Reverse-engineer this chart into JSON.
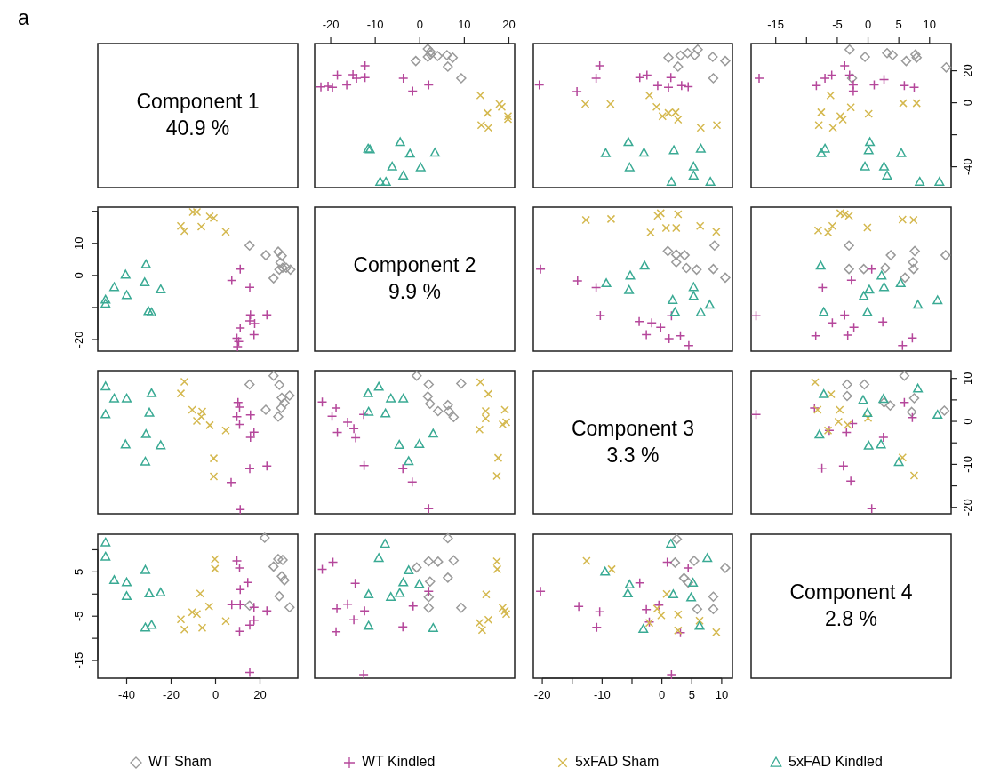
{
  "chart_data": [
    {
      "type": "other",
      "title": "Component 1",
      "subtitle": "40.9 %",
      "annotations": [
        "a"
      ]
    },
    {
      "type": "scatter",
      "xlim": [
        -23.6,
        21.3
      ],
      "ylim": [
        -53,
        37
      ],
      "xticks": [
        -20,
        -10,
        0,
        10,
        20
      ],
      "tick_labels": "x",
      "series": [
        {
          "color": "#9a9a9a",
          "marker": "diamond",
          "x": [
            9.3,
            6.3,
            -0.9,
            7.4,
            6.1,
            4,
            2.4,
            2.4,
            1.8,
            1.8
          ],
          "values": [
            15.3,
            22.6,
            26.1,
            28.2,
            29.8,
            29.2,
            30.2,
            31.8,
            33.7,
            28.7
          ]
        },
        {
          "color": "#b5479b",
          "marker": "plus",
          "x": [
            2,
            -1.6,
            -3.7,
            -12.3,
            -12.3,
            -14.2,
            -15,
            -18.5,
            -16.4,
            -19.6,
            -20.6,
            -22.2
          ],
          "values": [
            11.1,
            7.3,
            15.4,
            15.7,
            23.1,
            15.4,
            17.6,
            17.3,
            11.1,
            9.6,
            10.4,
            9.9
          ]
        },
        {
          "color": "#d4b84e",
          "marker": "cross",
          "x": [
            19.8,
            19.8,
            15.4,
            13.8,
            15.2,
            18.4,
            17.9,
            13.6
          ],
          "values": [
            -10.2,
            -8.4,
            -15.6,
            -14,
            -6.4,
            -2.6,
            -0.8,
            4.6
          ]
        },
        {
          "color": "#3aaa94",
          "marker": "triangle",
          "x": [
            3.4,
            0.2,
            -3.7,
            -2.2,
            -4.4,
            -6.2,
            -7.6,
            -8.9,
            -11.2,
            -11.6
          ],
          "values": [
            -31.3,
            -40.5,
            -45.6,
            -31.9,
            -24.7,
            -40,
            -49.5,
            -49.5,
            -29.3,
            -28.8
          ]
        }
      ]
    },
    {
      "type": "scatter",
      "xlim": [
        -21.5,
        11.8
      ],
      "ylim": [
        -53,
        37
      ],
      "tick_labels": false,
      "series": [
        {
          "color": "#9a9a9a",
          "marker": "diamond",
          "x": [
            8.6,
            10.6,
            8.5,
            5.5,
            6,
            4.3,
            3.1,
            1.1,
            2.7
          ],
          "values": [
            15.3,
            26.1,
            28.7,
            29.8,
            33.3,
            31,
            29.5,
            28.2,
            22.6
          ]
        },
        {
          "color": "#b5479b",
          "marker": "plus",
          "x": [
            4.4,
            3.3,
            1.1,
            -0.7,
            1.5,
            -2.5,
            -3.7,
            -11,
            -10.4,
            -14.2,
            -20.5
          ],
          "values": [
            10.1,
            10.8,
            9.6,
            10.8,
            15.7,
            17.3,
            15.7,
            15.4,
            23.1,
            7,
            11.1
          ]
        },
        {
          "color": "#d4b84e",
          "marker": "cross",
          "x": [
            9.2,
            6.5,
            2.7,
            2.3,
            1.1,
            0.1,
            -0.9,
            -2.1,
            -8.6,
            -12.8
          ],
          "values": [
            -14,
            -15.6,
            -10.5,
            -6,
            -6.4,
            -8.4,
            -2.6,
            4.6,
            -0.8,
            -0.8
          ]
        },
        {
          "color": "#3aaa94",
          "marker": "triangle",
          "x": [
            8.1,
            5.3,
            5.3,
            6.5,
            1.6,
            2,
            -3,
            -5.4,
            -5.6,
            -9.4
          ],
          "values": [
            -49.5,
            -45.6,
            -40,
            -28.8,
            -49.5,
            -29.8,
            -31.3,
            -40.5,
            -24.7,
            -31.6
          ]
        }
      ]
    },
    {
      "type": "scatter",
      "xlim": [
        -19,
        13.5
      ],
      "ylim": [
        -53,
        37
      ],
      "xticks": [
        -15,
        {
          "value": -10,
          "label": null
        },
        -5,
        0,
        5,
        10
      ],
      "yticks": [
        20,
        0,
        {
          "value": -20,
          "label": null
        },
        -40
      ],
      "series": [
        {
          "color": "#9a9a9a",
          "marker": "diamond",
          "x": [
            12.7,
            7.9,
            7.7,
            6.2,
            4,
            3.1,
            -0.5,
            -3,
            -2.6
          ],
          "values": [
            22.1,
            28.2,
            30.2,
            26.1,
            29.8,
            31,
            28.7,
            33.3,
            15.3
          ]
        },
        {
          "color": "#b5479b",
          "marker": "plus",
          "x": [
            7.5,
            5.9,
            2.6,
            1,
            -2.4,
            -2.4,
            -3,
            -3.8,
            -5.9,
            -7,
            -8.4,
            -17.7
          ],
          "values": [
            9.6,
            10.8,
            14.5,
            11.1,
            7.3,
            11.1,
            17.3,
            23.1,
            17.3,
            15.4,
            10.8,
            15.4
          ]
        },
        {
          "color": "#d4b84e",
          "marker": "cross",
          "x": [
            7.9,
            5.7,
            0.1,
            -2.8,
            -4.1,
            -4.5,
            -5.7,
            -8,
            -7.6,
            -6.1
          ],
          "values": [
            -0.3,
            -0.3,
            -6.9,
            -2.9,
            -10.5,
            -8.4,
            -15.6,
            -14,
            -6,
            4.6
          ]
        },
        {
          "color": "#3aaa94",
          "marker": "triangle",
          "x": [
            11.6,
            8.4,
            5.4,
            3.1,
            2.6,
            -0.5,
            0.1,
            0.3,
            -7.6,
            -7
          ],
          "values": [
            -49.5,
            -49.5,
            -31.6,
            -45.6,
            -40,
            -40,
            -29.8,
            -24.7,
            -31.6,
            -28.8
          ]
        }
      ]
    },
    {
      "type": "scatter",
      "xlim": [
        -53,
        37
      ],
      "ylim": [
        -23.6,
        21.3
      ],
      "yticks": [
        {
          "value": 20,
          "label": null
        },
        10,
        0,
        {
          "value": -10,
          "label": null
        },
        -20
      ],
      "tick_labels": "y",
      "series": [
        {
          "color": "#9a9a9a",
          "marker": "diamond",
          "x": [
            15.3,
            22.6,
            26.1,
            28.2,
            29.8,
            29.2,
            30.2,
            31.8,
            33.7,
            28.7
          ],
          "values": [
            9.3,
            6.3,
            -0.9,
            7.4,
            6.1,
            4,
            2.4,
            2.4,
            1.8,
            1.8
          ]
        },
        {
          "color": "#b5479b",
          "marker": "plus",
          "x": [
            11.1,
            7.3,
            15.4,
            15.7,
            23.1,
            15.4,
            17.6,
            17.3,
            11.1,
            9.6,
            10.4,
            9.9
          ],
          "values": [
            2,
            -1.6,
            -3.7,
            -12.3,
            -12.3,
            -14.2,
            -15,
            -18.5,
            -16.4,
            -19.6,
            -20.6,
            -22.2
          ]
        },
        {
          "color": "#d4b84e",
          "marker": "cross",
          "x": [
            -10.2,
            -8.4,
            -15.6,
            -14,
            -6.4,
            -2.6,
            -0.8,
            4.6
          ],
          "values": [
            19.8,
            19.8,
            15.4,
            13.8,
            15.2,
            18.4,
            17.9,
            13.6
          ]
        },
        {
          "color": "#3aaa94",
          "marker": "triangle",
          "x": [
            -31.3,
            -40.5,
            -45.6,
            -31.9,
            -24.7,
            -40,
            -49.5,
            -49.5,
            -30.2,
            -28.8
          ],
          "values": [
            3.4,
            0.2,
            -3.7,
            -2.2,
            -4.4,
            -6.2,
            -7.6,
            -8.9,
            -11.2,
            -11.6
          ]
        }
      ]
    },
    {
      "type": "other",
      "title": "Component 2",
      "subtitle": "9.9 %"
    },
    {
      "type": "scatter",
      "xlim": [
        -21.5,
        11.8
      ],
      "ylim": [
        -23.6,
        21.3
      ],
      "tick_labels": false,
      "series": [
        {
          "color": "#9a9a9a",
          "marker": "diamond",
          "x": [
            10.6,
            8.6,
            8.8,
            5.8,
            4.1,
            2.4,
            3.8,
            2.4,
            1
          ],
          "values": [
            -0.7,
            2,
            9.3,
            1.8,
            2.3,
            4.1,
            6.3,
            6.5,
            7.6
          ]
        },
        {
          "color": "#b5479b",
          "marker": "plus",
          "x": [
            4.5,
            3.1,
            1.2,
            1.6,
            -0.2,
            -1.7,
            -2.6,
            -3.8,
            -10.3,
            -11,
            -14.1,
            -20.3
          ],
          "values": [
            -21.9,
            -18.8,
            -19.7,
            -12.6,
            -16.2,
            -14.8,
            -18.5,
            -14.4,
            -12.5,
            -3.8,
            -1.7,
            2
          ]
        },
        {
          "color": "#d4b84e",
          "marker": "cross",
          "x": [
            9.1,
            6.4,
            2.4,
            0.7,
            2.7,
            -0.7,
            -0.2,
            -1.9,
            -8.5,
            -12.7
          ],
          "values": [
            13.6,
            15.4,
            14.8,
            14.8,
            19.1,
            18.6,
            19.4,
            13.4,
            17.6,
            17.3
          ]
        },
        {
          "color": "#3aaa94",
          "marker": "triangle",
          "x": [
            8,
            6.5,
            5.3,
            5.3,
            2.2,
            1.8,
            -2.9,
            -5.5,
            -5.3,
            -9.3
          ],
          "values": [
            -9.2,
            -11.6,
            -6.5,
            -3.7,
            -11.5,
            -7.7,
            3,
            -4.6,
            -0.1,
            -2.5
          ]
        }
      ]
    },
    {
      "type": "scatter",
      "xlim": [
        -19,
        13.5
      ],
      "ylim": [
        -23.6,
        21.3
      ],
      "tick_labels": false,
      "series": [
        {
          "color": "#9a9a9a",
          "marker": "diamond",
          "x": [
            12.6,
            6,
            7.4,
            7.3,
            7.6,
            3.7,
            2.8,
            -0.7,
            -3.1,
            -3.1
          ],
          "values": [
            6.3,
            -0.7,
            2,
            4.1,
            7.6,
            6.3,
            2.3,
            2,
            2,
            9.3
          ]
        },
        {
          "color": "#b5479b",
          "marker": "plus",
          "x": [
            5.6,
            7.2,
            2.4,
            0.6,
            -3.3,
            -2.3,
            -3.8,
            -2.7,
            -5.8,
            -8.5,
            -7.4,
            -18.2
          ],
          "values": [
            -21.9,
            -19.5,
            -14.5,
            2,
            -18.6,
            -16.2,
            -12.4,
            -1.5,
            -14.8,
            -18.8,
            -3.8,
            -12.6
          ]
        },
        {
          "color": "#d4b84e",
          "marker": "cross",
          "x": [
            7.4,
            5.6,
            -0.1,
            -3.1,
            -4.5,
            -5.8,
            -6.5,
            -8.1,
            -3.8
          ],
          "values": [
            17.3,
            17.4,
            14.9,
            18.6,
            19.4,
            15.4,
            13.4,
            14,
            19.1
          ]
        },
        {
          "color": "#3aaa94",
          "marker": "triangle",
          "x": [
            11.3,
            8.1,
            5.3,
            2.6,
            2.2,
            -0.1,
            -0.7,
            0.2,
            -7.2,
            -7.7
          ],
          "values": [
            -7.8,
            -9.2,
            -2.5,
            -3.7,
            -0.1,
            -11.5,
            -6.5,
            -4.5,
            -11.5,
            3
          ]
        }
      ]
    },
    {
      "type": "scatter",
      "xlim": [
        -53,
        37
      ],
      "ylim": [
        -21.5,
        11.8
      ],
      "tick_labels": false,
      "series": [
        {
          "color": "#9a9a9a",
          "marker": "diamond",
          "x": [
            15.3,
            26.1,
            28.7,
            29.8,
            33.3,
            31,
            29.5,
            28.2,
            22.6
          ],
          "values": [
            8.6,
            10.6,
            8.5,
            5.5,
            6,
            4.3,
            3.1,
            1.1,
            2.7
          ]
        },
        {
          "color": "#b5479b",
          "marker": "plus",
          "x": [
            10.1,
            10.8,
            9.6,
            10.8,
            15.7,
            17.3,
            15.7,
            15.4,
            23.1,
            7,
            11.1
          ],
          "values": [
            4.4,
            3.3,
            1.1,
            -0.7,
            1.5,
            -2.5,
            -3.7,
            -11,
            -10.4,
            -14.2,
            -20.5
          ]
        },
        {
          "color": "#d4b84e",
          "marker": "cross",
          "x": [
            -14,
            -15.6,
            -10.5,
            -6,
            -6.4,
            -8.4,
            -2.6,
            4.6,
            -0.8,
            -0.8
          ],
          "values": [
            9.2,
            6.5,
            2.7,
            2.3,
            1.1,
            0.1,
            -0.9,
            -2.1,
            -8.6,
            -12.8
          ]
        },
        {
          "color": "#3aaa94",
          "marker": "triangle",
          "x": [
            -49.5,
            -45.6,
            -40,
            -28.8,
            -49.5,
            -29.8,
            -31.3,
            -40.5,
            -24.7,
            -31.6
          ],
          "values": [
            8.1,
            5.3,
            5.3,
            6.5,
            1.6,
            2,
            -3,
            -5.4,
            -5.6,
            -9.4
          ]
        }
      ]
    },
    {
      "type": "scatter",
      "xlim": [
        -23.6,
        21.3
      ],
      "ylim": [
        -21.5,
        11.8
      ],
      "tick_labels": false,
      "series": [
        {
          "color": "#9a9a9a",
          "marker": "diamond",
          "x": [
            -0.7,
            2,
            9.3,
            1.8,
            2.3,
            4.1,
            6.3,
            6.5,
            7.6
          ],
          "values": [
            10.6,
            8.6,
            8.8,
            5.8,
            4.1,
            2.4,
            3.8,
            2.4,
            1
          ]
        },
        {
          "color": "#b5479b",
          "marker": "plus",
          "x": [
            -21.9,
            -18.8,
            -19.7,
            -12.6,
            -16.2,
            -14.8,
            -18.5,
            -14.4,
            -12.5,
            -3.8,
            -1.7,
            2
          ],
          "values": [
            4.5,
            3.1,
            1.2,
            1.6,
            -0.2,
            -1.7,
            -2.6,
            -3.8,
            -10.3,
            -11,
            -14.1,
            -20.3
          ]
        },
        {
          "color": "#d4b84e",
          "marker": "cross",
          "x": [
            13.6,
            15.4,
            14.8,
            14.8,
            19.1,
            18.6,
            19.4,
            13.4,
            17.6,
            17.3
          ],
          "values": [
            9.1,
            6.4,
            2.4,
            0.7,
            2.7,
            -0.7,
            -0.2,
            -1.9,
            -8.5,
            -12.7
          ]
        },
        {
          "color": "#3aaa94",
          "marker": "triangle",
          "x": [
            -9.2,
            -11.6,
            -6.5,
            -3.7,
            -11.5,
            -7.7,
            3,
            -4.6,
            -0.1,
            -2.5
          ],
          "values": [
            8,
            6.5,
            5.3,
            5.3,
            2.2,
            1.8,
            -2.9,
            -5.5,
            -5.3,
            -9.3
          ]
        }
      ]
    },
    {
      "type": "other",
      "title": "Component 3",
      "subtitle": "3.3 %"
    },
    {
      "type": "scatter",
      "xlim": [
        -19,
        13.5
      ],
      "ylim": [
        -21.5,
        11.8
      ],
      "yticks": [
        10,
        {
          "value": 5,
          "label": null
        },
        0,
        {
          "value": -5,
          "label": null
        },
        -10,
        {
          "value": -15,
          "label": null
        },
        -20
      ],
      "tick_labels": "y",
      "series": [
        {
          "color": "#9a9a9a",
          "marker": "diamond",
          "x": [
            12.4,
            7.1,
            7.5,
            5.9,
            3.6,
            2.6,
            -0.6,
            -3.4,
            -3.4
          ],
          "values": [
            2.5,
            2.2,
            5.4,
            10.6,
            3.7,
            4.4,
            8.6,
            5.9,
            8.6
          ]
        },
        {
          "color": "#b5479b",
          "marker": "plus",
          "x": [
            0.6,
            -2.8,
            -4,
            -7.5,
            2.5,
            7.2,
            5.9,
            -2.5,
            -3.5,
            -6.3,
            -8.7,
            -18.2
          ],
          "values": [
            -20.3,
            -13.9,
            -10.4,
            -10.9,
            -3.7,
            0.9,
            4.4,
            -0.5,
            -2.6,
            -2.1,
            3.1,
            1.6
          ]
        },
        {
          "color": "#d4b84e",
          "marker": "cross",
          "x": [
            7.5,
            5.6,
            0,
            -3.3,
            -4.8,
            -4.6,
            -6.5,
            -6,
            -8.2,
            -8.6
          ],
          "values": [
            -12.6,
            -8.4,
            0.8,
            -0.8,
            -0.1,
            2.7,
            -2.1,
            6.3,
            2.7,
            9.1
          ]
        },
        {
          "color": "#3aaa94",
          "marker": "triangle",
          "x": [
            11.3,
            8.1,
            5,
            2.1,
            0.1,
            2.5,
            -0.1,
            -0.8,
            -7.2,
            -7.9
          ],
          "values": [
            1.5,
            7.6,
            -9.5,
            -5.4,
            -5.7,
            5.2,
            1.9,
            4.9,
            6.3,
            -3.1
          ]
        }
      ]
    },
    {
      "type": "scatter",
      "xlim": [
        -53,
        37
      ],
      "ylim": [
        -19,
        13.5
      ],
      "xticks": [
        -40,
        -20,
        0,
        20
      ],
      "yticks": [
        {
          "value": 10,
          "label": null
        },
        5,
        {
          "value": 0,
          "label": null
        },
        -5,
        {
          "value": -10,
          "label": null
        },
        -15
      ],
      "legend": "bottom",
      "series": [
        {
          "name": "WT Sham",
          "color": "#9a9a9a",
          "marker": "diamond",
          "x": [
            22.1,
            28.2,
            30.2,
            26.1,
            29.8,
            31,
            28.7,
            33.3,
            15.3
          ],
          "values": [
            12.7,
            7.9,
            7.7,
            6.2,
            4,
            3.1,
            -0.5,
            -3,
            -2.6
          ]
        },
        {
          "name": "WT Kindled",
          "color": "#b5479b",
          "marker": "plus",
          "x": [
            9.6,
            10.8,
            14.5,
            11.1,
            7.3,
            11.1,
            17.3,
            23.1,
            17.3,
            15.4,
            10.8,
            15.4
          ],
          "values": [
            7.5,
            5.9,
            2.6,
            1,
            -2.4,
            -2.4,
            -3,
            -3.8,
            -5.9,
            -7,
            -8.4,
            -17.7
          ]
        },
        {
          "name": "5xFAD Sham",
          "color": "#d4b84e",
          "marker": "cross",
          "x": [
            -0.3,
            -0.3,
            -6.9,
            -2.9,
            -10.5,
            -8.4,
            -15.6,
            -14,
            -6,
            4.6
          ],
          "values": [
            7.9,
            5.7,
            0.1,
            -2.8,
            -4.1,
            -4.5,
            -5.7,
            -8,
            -7.6,
            -6.1
          ]
        },
        {
          "name": "5xFAD Kindled",
          "color": "#3aaa94",
          "marker": "triangle",
          "x": [
            -49.5,
            -49.5,
            -31.6,
            -45.6,
            -40,
            -40,
            -29.8,
            -24.7,
            -31.6,
            -28.8
          ],
          "values": [
            11.6,
            8.4,
            5.4,
            3.1,
            2.6,
            -0.5,
            0.1,
            0.3,
            -7.6,
            -7
          ]
        }
      ]
    },
    {
      "type": "scatter",
      "xlim": [
        -23.6,
        21.3
      ],
      "ylim": [
        -19,
        13.5
      ],
      "tick_labels": false,
      "series": [
        {
          "color": "#9a9a9a",
          "marker": "diamond",
          "x": [
            6.3,
            -0.7,
            2,
            4.1,
            7.6,
            6.3,
            2.3,
            2,
            2,
            9.3
          ],
          "values": [
            12.6,
            6,
            7.4,
            7.3,
            7.6,
            3.7,
            2.8,
            -0.7,
            -3.1,
            -3.1
          ]
        },
        {
          "color": "#b5479b",
          "marker": "plus",
          "x": [
            -21.9,
            -19.5,
            -14.5,
            2,
            -18.6,
            -16.2,
            -12.4,
            -1.5,
            -14.8,
            -18.8,
            -3.8,
            -12.6
          ],
          "values": [
            5.6,
            7.2,
            2.4,
            0.6,
            -3.3,
            -2.3,
            -3.8,
            -2.7,
            -5.8,
            -8.5,
            -7.4,
            -18.2
          ]
        },
        {
          "color": "#d4b84e",
          "marker": "cross",
          "x": [
            17.3,
            17.4,
            14.9,
            18.6,
            19.4,
            15.4,
            13.4,
            14,
            19.1
          ],
          "values": [
            7.4,
            5.6,
            -0.1,
            -3.1,
            -4.5,
            -5.8,
            -6.5,
            -8.1,
            -3.8
          ]
        },
        {
          "color": "#3aaa94",
          "marker": "triangle",
          "x": [
            -7.8,
            -9.2,
            -2.5,
            -3.7,
            -0.1,
            -11.5,
            -6.5,
            -4.5,
            -11.5,
            3
          ],
          "values": [
            11.3,
            8.1,
            5.3,
            2.6,
            2.2,
            -0.1,
            -0.7,
            0.2,
            -7.2,
            -7.7
          ]
        }
      ]
    },
    {
      "type": "scatter",
      "xlim": [
        -21.5,
        11.8
      ],
      "ylim": [
        -19,
        13.5
      ],
      "xticks": [
        -20,
        {
          "value": -15,
          "label": null
        },
        -10,
        {
          "value": -5,
          "label": null
        },
        0,
        5,
        10
      ],
      "tick_labels": "x",
      "series": [
        {
          "color": "#9a9a9a",
          "marker": "diamond",
          "x": [
            2.5,
            2.2,
            5.4,
            10.6,
            3.7,
            4.4,
            8.6,
            5.9,
            8.6
          ],
          "values": [
            12.4,
            7.1,
            7.5,
            5.9,
            3.6,
            2.6,
            -0.6,
            -3.4,
            -3.4
          ]
        },
        {
          "color": "#b5479b",
          "marker": "plus",
          "x": [
            -20.3,
            -13.9,
            -10.4,
            -10.9,
            -3.7,
            0.9,
            4.4,
            -0.5,
            -2.6,
            -2.1,
            3.1,
            1.6
          ],
          "values": [
            0.6,
            -2.8,
            -4,
            -7.5,
            2.5,
            7.2,
            5.9,
            -2.5,
            -3.5,
            -6.3,
            -8.7,
            -18.2
          ]
        },
        {
          "color": "#d4b84e",
          "marker": "cross",
          "x": [
            -12.6,
            -8.4,
            0.8,
            -0.8,
            -0.1,
            2.7,
            -2.1,
            6.3,
            2.7,
            9.1
          ],
          "values": [
            7.5,
            5.6,
            0,
            -3.3,
            -4.8,
            -4.6,
            -6.5,
            -6,
            -8.2,
            -8.6
          ]
        },
        {
          "color": "#3aaa94",
          "marker": "triangle",
          "x": [
            1.5,
            7.6,
            -9.5,
            -5.4,
            -5.7,
            5.2,
            1.9,
            4.9,
            6.3,
            -3.1
          ],
          "values": [
            11.3,
            8.1,
            5,
            2.1,
            0.1,
            2.5,
            -0.1,
            -0.8,
            -7.2,
            -7.9
          ]
        }
      ]
    },
    {
      "type": "other",
      "title": "Component 4",
      "subtitle": "2.8 %"
    }
  ]
}
